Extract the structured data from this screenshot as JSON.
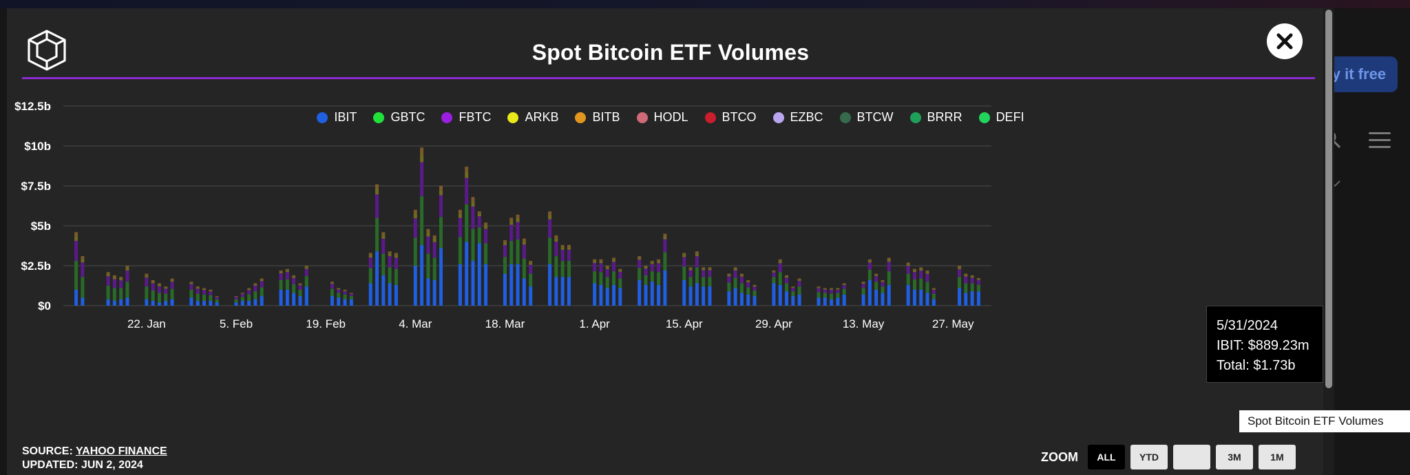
{
  "background": {
    "cta_label": "Try it free"
  },
  "modal": {
    "title": "Spot Bitcoin ETF Volumes",
    "source_label": "SOURCE:",
    "source_name": "YAHOO FINANCE",
    "updated_label": "UPDATED:",
    "updated_date": "JUN 2, 2024",
    "zoom_label": "ZOOM",
    "zoom_buttons": [
      "ALL",
      "YTD",
      "",
      "3M",
      "1M"
    ],
    "zoom_active": "ALL",
    "hover_label": "Spot Bitcoin ETF Volumes",
    "accent_color": "#8b2bd0"
  },
  "tooltip": {
    "date": "5/31/2024",
    "line1": "IBIT: $889.23m",
    "line2": "Total: $1.73b"
  },
  "chart_data": {
    "type": "bar",
    "stacked": true,
    "title": "Spot Bitcoin ETF Volumes",
    "xlabel": "",
    "ylabel": "",
    "y_unit": "billions USD",
    "ylim": [
      0,
      12.5
    ],
    "y_ticks": [
      0,
      2.5,
      5,
      7.5,
      10,
      12.5
    ],
    "y_tick_labels": [
      "$0",
      "$2.5b",
      "$5b",
      "$7.5b",
      "$10b",
      "$12.5b"
    ],
    "x_tick_labels": [
      "22. Jan",
      "5. Feb",
      "19. Feb",
      "4. Mar",
      "18. Mar",
      "1. Apr",
      "15. Apr",
      "29. Apr",
      "13. May",
      "27. May"
    ],
    "grid": true,
    "legend_position": "top-center",
    "series": [
      {
        "name": "IBIT",
        "color": "#1f5fe0"
      },
      {
        "name": "GBTC",
        "color": "#22e03a"
      },
      {
        "name": "FBTC",
        "color": "#9b1fe0"
      },
      {
        "name": "ARKB",
        "color": "#e8e81a"
      },
      {
        "name": "BITB",
        "color": "#e0961f"
      },
      {
        "name": "HODL",
        "color": "#d06a78"
      },
      {
        "name": "BTCO",
        "color": "#c81e2e"
      },
      {
        "name": "EZBC",
        "color": "#b9a6ef"
      },
      {
        "name": "BTCW",
        "color": "#356b4b"
      },
      {
        "name": "BRRR",
        "color": "#1fa05a"
      },
      {
        "name": "DEFI",
        "color": "#22d45c"
      }
    ],
    "x": [
      "2024-01-11",
      "2024-01-12",
      "2024-01-16",
      "2024-01-17",
      "2024-01-18",
      "2024-01-19",
      "2024-01-22",
      "2024-01-23",
      "2024-01-24",
      "2024-01-25",
      "2024-01-26",
      "2024-01-29",
      "2024-01-30",
      "2024-01-31",
      "2024-02-01",
      "2024-02-02",
      "2024-02-05",
      "2024-02-06",
      "2024-02-07",
      "2024-02-08",
      "2024-02-09",
      "2024-02-12",
      "2024-02-13",
      "2024-02-14",
      "2024-02-15",
      "2024-02-16",
      "2024-02-20",
      "2024-02-21",
      "2024-02-22",
      "2024-02-23",
      "2024-02-26",
      "2024-02-27",
      "2024-02-28",
      "2024-02-29",
      "2024-03-01",
      "2024-03-04",
      "2024-03-05",
      "2024-03-06",
      "2024-03-07",
      "2024-03-08",
      "2024-03-11",
      "2024-03-12",
      "2024-03-13",
      "2024-03-14",
      "2024-03-15",
      "2024-03-18",
      "2024-03-19",
      "2024-03-20",
      "2024-03-21",
      "2024-03-22",
      "2024-03-25",
      "2024-03-26",
      "2024-03-27",
      "2024-03-28",
      "2024-04-01",
      "2024-04-02",
      "2024-04-03",
      "2024-04-04",
      "2024-04-05",
      "2024-04-08",
      "2024-04-09",
      "2024-04-10",
      "2024-04-11",
      "2024-04-12",
      "2024-04-15",
      "2024-04-16",
      "2024-04-17",
      "2024-04-18",
      "2024-04-19",
      "2024-04-22",
      "2024-04-23",
      "2024-04-24",
      "2024-04-25",
      "2024-04-26",
      "2024-04-29",
      "2024-04-30",
      "2024-05-01",
      "2024-05-02",
      "2024-05-03",
      "2024-05-06",
      "2024-05-07",
      "2024-05-08",
      "2024-05-09",
      "2024-05-10",
      "2024-05-13",
      "2024-05-14",
      "2024-05-15",
      "2024-05-16",
      "2024-05-17",
      "2024-05-20",
      "2024-05-21",
      "2024-05-22",
      "2024-05-23",
      "2024-05-24",
      "2024-05-28",
      "2024-05-29",
      "2024-05-30",
      "2024-05-31"
    ],
    "totals": [
      4.6,
      3.1,
      2.1,
      1.9,
      1.8,
      2.5,
      2.0,
      1.6,
      1.4,
      1.2,
      1.7,
      1.5,
      1.2,
      1.1,
      1.0,
      0.6,
      0.6,
      0.8,
      1.1,
      1.4,
      1.7,
      2.2,
      2.3,
      1.9,
      1.4,
      2.5,
      1.5,
      1.1,
      1.0,
      0.8,
      3.3,
      7.6,
      4.6,
      3.4,
      3.3,
      6.0,
      9.9,
      4.8,
      4.4,
      7.5,
      6.0,
      8.7,
      6.8,
      5.9,
      5.2,
      4.1,
      5.5,
      5.7,
      4.2,
      2.8,
      5.9,
      4.4,
      3.8,
      3.8,
      2.9,
      2.9,
      2.5,
      3.0,
      2.3,
      3.1,
      2.5,
      2.8,
      2.9,
      4.5,
      3.3,
      2.4,
      3.4,
      2.4,
      2.4,
      2.0,
      2.4,
      2.0,
      1.6,
      1.3,
      2.2,
      2.9,
      1.9,
      1.2,
      1.7,
      1.2,
      1.1,
      1.1,
      1.1,
      1.4,
      1.5,
      2.9,
      2.0,
      1.6,
      3.0,
      2.7,
      2.3,
      2.4,
      2.2,
      1.1,
      2.5,
      2.0,
      1.9,
      1.73
    ],
    "ibit_values": [
      1.0,
      0.5,
      0.4,
      0.3,
      0.4,
      0.5,
      0.4,
      0.3,
      0.2,
      0.3,
      0.4,
      0.5,
      0.3,
      0.3,
      0.3,
      0.2,
      0.2,
      0.3,
      0.3,
      0.4,
      0.6,
      1.0,
      1.0,
      0.8,
      0.6,
      1.2,
      0.6,
      0.5,
      0.4,
      0.4,
      1.4,
      3.4,
      1.9,
      1.4,
      1.3,
      2.5,
      3.8,
      1.7,
      1.6,
      3.6,
      2.6,
      4.0,
      2.8,
      3.9,
      2.6,
      2.0,
      2.6,
      2.6,
      1.7,
      1.2,
      2.6,
      1.8,
      1.8,
      1.8,
      1.4,
      1.3,
      1.1,
      1.3,
      1.1,
      1.6,
      1.3,
      1.5,
      1.3,
      2.2,
      1.6,
      1.2,
      1.4,
      1.2,
      1.2,
      0.9,
      1.1,
      0.8,
      0.7,
      0.6,
      1.4,
      1.3,
      0.9,
      0.6,
      0.7,
      0.5,
      0.5,
      0.4,
      0.5,
      0.7,
      0.7,
      1.6,
      1.0,
      0.8,
      1.3,
      1.3,
      1.0,
      1.0,
      0.8,
      0.4,
      1.1,
      0.8,
      0.9,
      0.89
    ]
  }
}
